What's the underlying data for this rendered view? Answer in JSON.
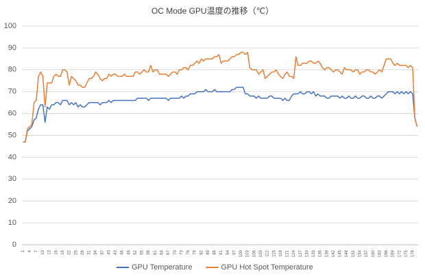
{
  "chart_data": {
    "type": "line",
    "title": "OC Mode GPU温度の推移（℃）",
    "categories": [
      "1",
      null,
      null,
      "4",
      null,
      null,
      "7",
      null,
      null,
      "10",
      null,
      null,
      "13",
      null,
      null,
      "16",
      null,
      null,
      "19",
      null,
      null,
      "22",
      null,
      null,
      "25",
      null,
      null,
      "28",
      null,
      null,
      "31",
      null,
      null,
      "34",
      null,
      null,
      "37",
      null,
      null,
      "40",
      null,
      null,
      "43",
      null,
      null,
      "46",
      null,
      null,
      "49",
      null,
      null,
      "52",
      null,
      null,
      "55",
      null,
      null,
      "58",
      null,
      null,
      "61",
      null,
      null,
      "64",
      null,
      null,
      "67",
      null,
      null,
      "70",
      null,
      null,
      "73",
      null,
      null,
      "76",
      null,
      null,
      "79",
      null,
      null,
      "82",
      null,
      null,
      "85",
      null,
      null,
      "88",
      null,
      null,
      "91",
      null,
      null,
      "94",
      null,
      null,
      "97",
      null,
      null,
      "100",
      null,
      null,
      "103",
      null,
      null,
      "106",
      null,
      null,
      "109",
      null,
      null,
      "112",
      null,
      null,
      "115",
      null,
      null,
      "118",
      null,
      null,
      "121",
      null,
      null,
      "124",
      null,
      null,
      "127",
      null,
      null,
      "130",
      null,
      null,
      "133",
      null,
      null,
      "136",
      null,
      null,
      "139",
      null,
      null,
      "142",
      null,
      null,
      "145",
      null,
      null,
      "148",
      null,
      null,
      "151",
      null,
      null,
      "154",
      null,
      null,
      "157",
      null,
      null,
      "160",
      null,
      null,
      "163",
      null,
      null,
      "166",
      null,
      null,
      "169",
      null,
      null,
      "172",
      null,
      null,
      "175",
      null,
      null,
      "178",
      null,
      null
    ],
    "series": [
      {
        "name": "GPU Temperature",
        "color": "#4472c4",
        "values": [
          47,
          47,
          52,
          53,
          54,
          57,
          58,
          62,
          64,
          64,
          56,
          63,
          62,
          64,
          64,
          65,
          65,
          64,
          66,
          66,
          66,
          64,
          65,
          64,
          65,
          63,
          64,
          63,
          63,
          64,
          65,
          65,
          65,
          65,
          65,
          64,
          65,
          65,
          65,
          66,
          65,
          66,
          66,
          66,
          66,
          66,
          66,
          66,
          66,
          66,
          66,
          66,
          67,
          67,
          67,
          67,
          67,
          66,
          67,
          67,
          67,
          67,
          67,
          67,
          67,
          67,
          66,
          67,
          67,
          67,
          67,
          67,
          68,
          67,
          68,
          68,
          69,
          69,
          69,
          70,
          70,
          70,
          70,
          71,
          70,
          70,
          70,
          71,
          70,
          70,
          70,
          70,
          70,
          70,
          70,
          71,
          71,
          72,
          72,
          72,
          72,
          69,
          69,
          68,
          68,
          68,
          67,
          68,
          67,
          67,
          67,
          67,
          68,
          68,
          67,
          67,
          67,
          67,
          66,
          67,
          66,
          66,
          68,
          69,
          69,
          69,
          70,
          69,
          69,
          70,
          70,
          69,
          70,
          68,
          69,
          68,
          68,
          68,
          67,
          67,
          68,
          68,
          68,
          68,
          67,
          68,
          67,
          67,
          68,
          67,
          67,
          68,
          67,
          67,
          68,
          68,
          67,
          67,
          68,
          67,
          67,
          68,
          68,
          67,
          68,
          69,
          70,
          70,
          70,
          69,
          70,
          69,
          70,
          69,
          70,
          69,
          70,
          69,
          58,
          54
        ]
      },
      {
        "name": "GPU Hot Spot Temperature",
        "color": "#ed7d31",
        "values": [
          47,
          47,
          53,
          54,
          55,
          65,
          66,
          77,
          79,
          77,
          63,
          74,
          74,
          74,
          77,
          78,
          77,
          77,
          80,
          80,
          79,
          73,
          77,
          76,
          75,
          73,
          73,
          72,
          72,
          74,
          76,
          76,
          77,
          79,
          78,
          76,
          75,
          76,
          76,
          78,
          77,
          78,
          78,
          77,
          77,
          77,
          78,
          77,
          77,
          77,
          77,
          79,
          79,
          78,
          79,
          80,
          79,
          79,
          82,
          79,
          80,
          80,
          78,
          78,
          78,
          78,
          77,
          78,
          79,
          79,
          78,
          80,
          80,
          81,
          81,
          80,
          82,
          82,
          83,
          84,
          83,
          85,
          84,
          85,
          85,
          85,
          85,
          86,
          86,
          87,
          83,
          84,
          84,
          84,
          85,
          86,
          86,
          87,
          87,
          88,
          88,
          87,
          88,
          81,
          80,
          80,
          80,
          78,
          79,
          80,
          76,
          77,
          78,
          79,
          79,
          80,
          78,
          77,
          76,
          78,
          79,
          77,
          77,
          76,
          86,
          82,
          82,
          83,
          83,
          83,
          84,
          84,
          83,
          83,
          84,
          83,
          81,
          80,
          81,
          81,
          80,
          79,
          80,
          80,
          79,
          78,
          81,
          80,
          80,
          80,
          79,
          80,
          80,
          78,
          79,
          79,
          80,
          80,
          79,
          79,
          78,
          79,
          80,
          79,
          82,
          85,
          85,
          85,
          83,
          82,
          83,
          82,
          82,
          82,
          82,
          81,
          82,
          81,
          58,
          54
        ]
      }
    ],
    "ylim": [
      0,
      100
    ],
    "yticks": [
      0,
      10,
      20,
      30,
      40,
      50,
      60,
      70,
      80,
      90,
      100
    ],
    "grid": true,
    "legend": "bottom"
  }
}
